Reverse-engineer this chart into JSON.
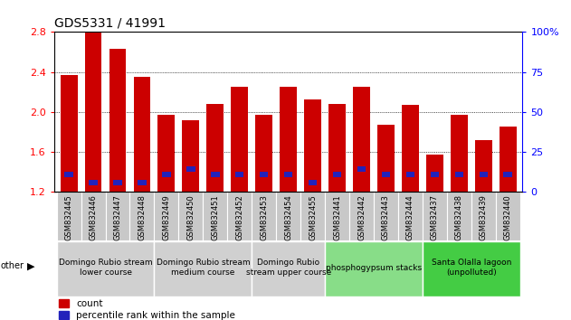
{
  "title": "GDS5331 / 41991",
  "samples": [
    "GSM832445",
    "GSM832446",
    "GSM832447",
    "GSM832448",
    "GSM832449",
    "GSM832450",
    "GSM832451",
    "GSM832452",
    "GSM832453",
    "GSM832454",
    "GSM832455",
    "GSM832441",
    "GSM832442",
    "GSM832443",
    "GSM832444",
    "GSM832437",
    "GSM832438",
    "GSM832439",
    "GSM832440"
  ],
  "count_values": [
    2.37,
    2.8,
    2.63,
    2.35,
    1.97,
    1.92,
    2.08,
    2.25,
    1.97,
    2.25,
    2.13,
    2.08,
    2.25,
    1.87,
    2.07,
    1.57,
    1.97,
    1.72,
    1.85
  ],
  "percentile_bottom": [
    1.35,
    1.27,
    1.27,
    1.27,
    1.35,
    1.4,
    1.35,
    1.35,
    1.35,
    1.35,
    1.27,
    1.35,
    1.4,
    1.35,
    1.35,
    1.35,
    1.35,
    1.35,
    1.35
  ],
  "percentile_height": [
    0.055,
    0.055,
    0.055,
    0.055,
    0.055,
    0.055,
    0.055,
    0.055,
    0.055,
    0.055,
    0.055,
    0.055,
    0.055,
    0.055,
    0.055,
    0.055,
    0.055,
    0.055,
    0.055
  ],
  "bar_bottom": 1.2,
  "ylim": [
    1.2,
    2.8
  ],
  "yticks_left": [
    1.2,
    1.6,
    2.0,
    2.4,
    2.8
  ],
  "yticks_right": [
    0,
    25,
    50,
    75,
    100
  ],
  "groups": [
    {
      "label": "Domingo Rubio stream\nlower course",
      "start": 0,
      "end": 4,
      "color": "#d0d0d0"
    },
    {
      "label": "Domingo Rubio stream\nmedium course",
      "start": 4,
      "end": 8,
      "color": "#d0d0d0"
    },
    {
      "label": "Domingo Rubio\nstream upper course",
      "start": 8,
      "end": 11,
      "color": "#d0d0d0"
    },
    {
      "label": "phosphogypsum stacks",
      "start": 11,
      "end": 15,
      "color": "#88dd88"
    },
    {
      "label": "Santa Olalla lagoon\n(unpolluted)",
      "start": 15,
      "end": 19,
      "color": "#44cc44"
    }
  ],
  "count_color": "#cc0000",
  "percentile_color": "#2222bb",
  "bar_width": 0.7,
  "blue_bar_width": 0.35,
  "tick_label_fontsize": 6.0,
  "group_label_fontsize": 6.5,
  "title_fontsize": 10,
  "legend_fontsize": 7.5,
  "tick_area_bg": "#c8c8c8"
}
